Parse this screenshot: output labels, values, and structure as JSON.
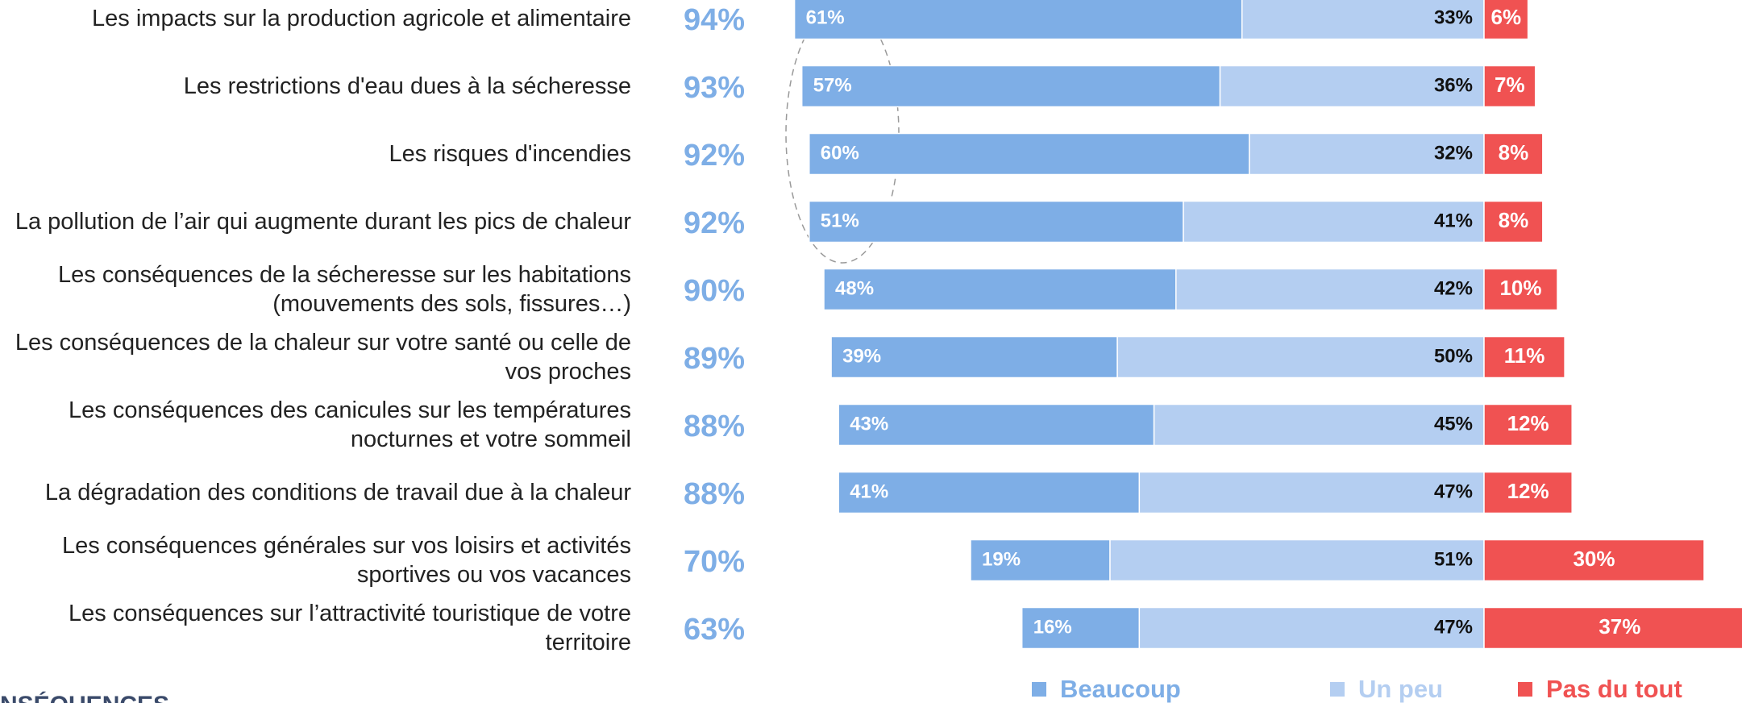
{
  "chart_data": {
    "type": "diverging-bar",
    "categories": [
      "Les impacts sur la production agricole et alimentaire",
      "Les restrictions d'eau dues à la sécheresse",
      "Les risques d'incendies",
      "La pollution de l’air qui augmente durant les pics de chaleur",
      "Les conséquences de la sécheresse sur les habitations (mouvements des sols, fissures…)",
      "Les conséquences de la chaleur sur votre santé ou celle de vos proches",
      "Les conséquences des canicules sur les températures nocturnes et votre sommeil",
      "La dégradation des conditions de travail due à la chaleur",
      "Les conséquences générales sur vos loisirs et activités sportives ou vos vacances",
      "Les conséquences sur l’attractivité touristique de votre territoire"
    ],
    "series": [
      {
        "name": "Beaucoup",
        "color": "#7eaee6",
        "side": "left",
        "values": [
          61,
          57,
          60,
          51,
          48,
          39,
          43,
          41,
          19,
          16
        ],
        "value_labels": [
          "61%",
          "57%",
          "60%",
          "51%",
          "48%",
          "39%",
          "43%",
          "41%",
          "19%",
          "16%"
        ]
      },
      {
        "name": "Un peu",
        "color": "#b4cef1",
        "side": "left",
        "values": [
          33,
          36,
          32,
          41,
          42,
          50,
          45,
          47,
          51,
          47
        ],
        "value_labels": [
          "33%",
          "36%",
          "32%",
          "41%",
          "42%",
          "50%",
          "45%",
          "47%",
          "51%",
          "47%"
        ]
      },
      {
        "name": "Pas du tout",
        "color": "#f05252",
        "side": "right",
        "values": [
          6,
          7,
          8,
          8,
          10,
          11,
          12,
          12,
          30,
          37
        ],
        "value_labels": [
          "6%",
          "7%",
          "8%",
          "8%",
          "10%",
          "11%",
          "12%",
          "12%",
          "30%",
          "37%"
        ]
      }
    ],
    "totals": {
      "values": [
        94,
        93,
        92,
        92,
        90,
        89,
        88,
        88,
        70,
        63
      ],
      "value_labels": [
        "94%",
        "93%",
        "92%",
        "92%",
        "90%",
        "89%",
        "88%",
        "88%",
        "70%",
        "63%"
      ]
    },
    "footer": "NSÉQUENCES"
  }
}
